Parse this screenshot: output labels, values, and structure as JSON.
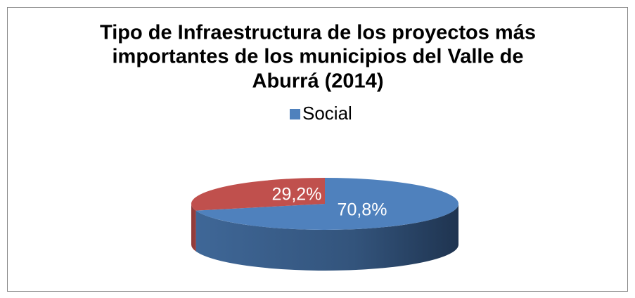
{
  "chart_data": {
    "type": "pie3d",
    "title": [
      "Tipo de Infraestructura de los proyectos más",
      "importantes de los municipios del Valle de",
      "Aburrá (2014)"
    ],
    "categories": [
      "Social",
      null
    ],
    "values": [
      70.8,
      29.2
    ],
    "value_labels": [
      "70,8%",
      "29,2%"
    ],
    "colors": [
      "#4f81bd",
      "#c0504d"
    ],
    "legend": "top"
  }
}
